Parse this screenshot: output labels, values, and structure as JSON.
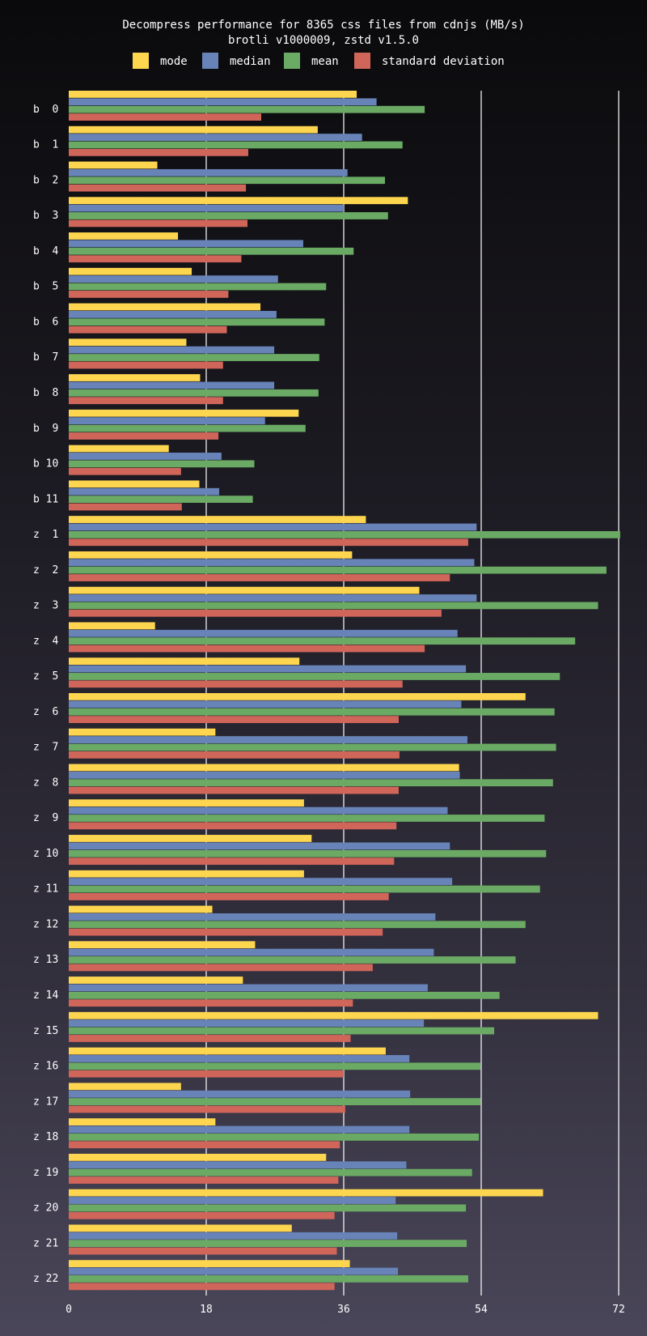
{
  "chart_data": {
    "type": "bar",
    "orientation": "horizontal",
    "title": "Decompress performance for 8365 css files from cdnjs (MB/s)",
    "subtitle": "brotli v1000009, zstd v1.5.0",
    "xlim": [
      0,
      72
    ],
    "xticks": [
      0,
      18,
      36,
      54,
      72
    ],
    "categories": [
      "b  0",
      "b  1",
      "b  2",
      "b  3",
      "b  4",
      "b  5",
      "b  6",
      "b  7",
      "b  8",
      "b  9",
      "b 10",
      "b 11",
      "z  1",
      "z  2",
      "z  3",
      "z  4",
      "z  5",
      "z  6",
      "z  7",
      "z  8",
      "z  9",
      "z 10",
      "z 11",
      "z 12",
      "z 13",
      "z 14",
      "z 15",
      "z 16",
      "z 17",
      "z 18",
      "z 19",
      "z 20",
      "z 21",
      "z 22"
    ],
    "series": [
      {
        "name": "mode",
        "color": "#fdd54f",
        "values": [
          37.7,
          32.6,
          11.6,
          44.4,
          14.3,
          16.1,
          25.1,
          15.4,
          17.2,
          30.1,
          13.1,
          17.1,
          38.9,
          37.1,
          45.9,
          11.3,
          30.2,
          59.8,
          19.2,
          51.1,
          30.8,
          31.8,
          30.8,
          18.8,
          24.4,
          22.8,
          69.3,
          41.5,
          14.7,
          19.2,
          33.7,
          62.1,
          29.2,
          36.8
        ]
      },
      {
        "name": "median",
        "color": "#6783b8",
        "values": [
          40.3,
          38.4,
          36.5,
          36.0,
          30.7,
          27.4,
          27.2,
          26.9,
          26.9,
          25.7,
          20.0,
          19.7,
          53.4,
          53.1,
          53.4,
          50.9,
          52.0,
          51.4,
          52.2,
          51.2,
          49.6,
          49.9,
          50.2,
          48.0,
          47.8,
          47.0,
          46.5,
          44.6,
          44.7,
          44.6,
          44.2,
          42.8,
          43.0,
          43.1
        ]
      },
      {
        "name": "mean",
        "color": "#6aaa64",
        "values": [
          46.6,
          43.7,
          41.4,
          41.8,
          37.3,
          33.7,
          33.5,
          32.8,
          32.7,
          31.0,
          24.3,
          24.1,
          72.2,
          70.4,
          69.3,
          66.3,
          64.3,
          63.6,
          63.8,
          63.4,
          62.3,
          62.5,
          61.7,
          59.8,
          58.5,
          56.4,
          55.7,
          53.9,
          53.9,
          53.7,
          52.8,
          52.0,
          52.1,
          52.3
        ]
      },
      {
        "name": "standard deviation",
        "color": "#d0655a",
        "values": [
          25.2,
          23.5,
          23.2,
          23.4,
          22.6,
          20.9,
          20.7,
          20.2,
          20.2,
          19.6,
          14.7,
          14.8,
          52.3,
          49.9,
          48.8,
          46.6,
          43.7,
          43.2,
          43.3,
          43.2,
          42.9,
          42.6,
          41.9,
          41.1,
          39.8,
          37.2,
          36.9,
          36.0,
          36.2,
          35.5,
          35.3,
          34.8,
          35.1,
          34.8
        ]
      }
    ]
  }
}
